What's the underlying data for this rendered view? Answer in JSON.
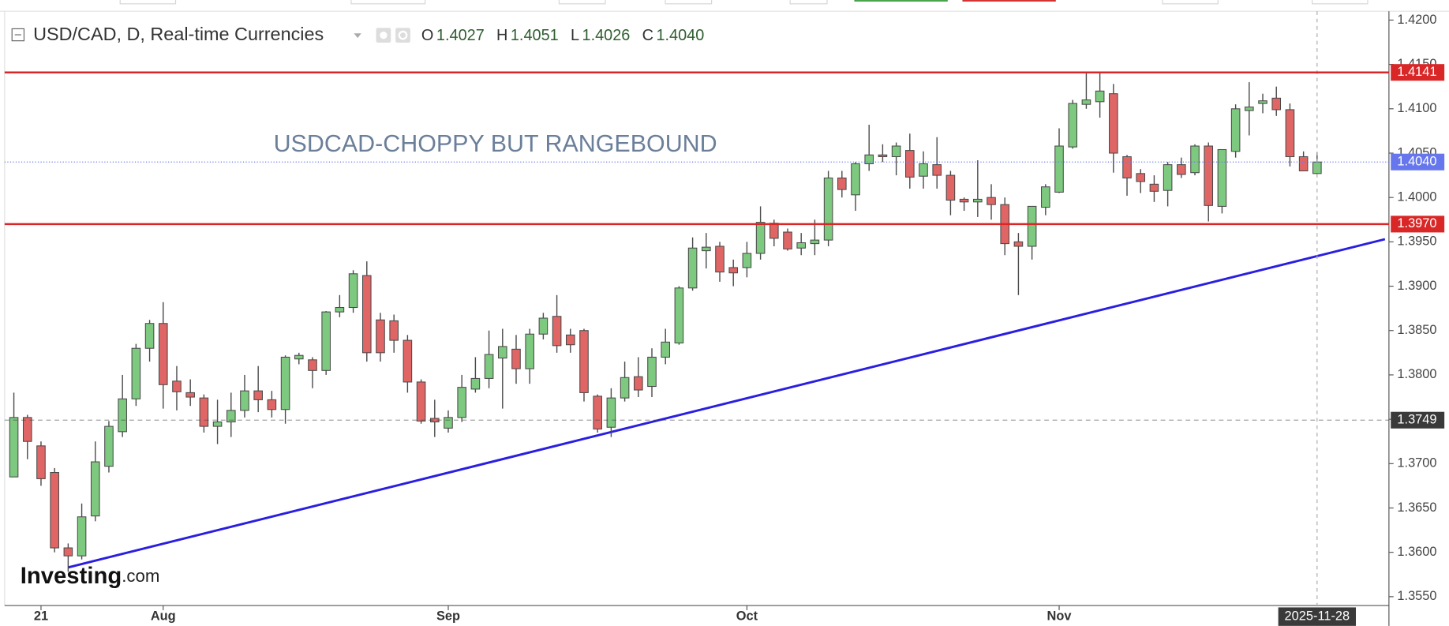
{
  "chart_data": {
    "type": "candlestick",
    "title": "USD/CAD, D, Real-time Currencies",
    "legend_values": [
      {
        "name": "O",
        "value": "1.4027"
      },
      {
        "name": "H",
        "value": "1.4051"
      },
      {
        "name": "L",
        "value": "1.4026"
      },
      {
        "name": "C",
        "value": "1.4040"
      }
    ],
    "annotation": "USDCAD-CHOPPY BUT RANGEBOUND",
    "watermark": {
      "brand": "Investing",
      "suffix": ".com"
    },
    "up_color": "#7dc97f",
    "down_color": "#e06666",
    "categories": [
      null,
      null,
      "21",
      null,
      null,
      null,
      null,
      null,
      null,
      null,
      null,
      "Aug",
      null,
      null,
      null,
      null,
      null,
      null,
      null,
      null,
      null,
      null,
      null,
      null,
      null,
      null,
      null,
      null,
      null,
      null,
      null,
      null,
      "Sep",
      null,
      null,
      null,
      null,
      null,
      null,
      null,
      null,
      null,
      null,
      null,
      null,
      null,
      null,
      null,
      null,
      null,
      null,
      null,
      null,
      null,
      "Oct",
      null,
      null,
      null,
      null,
      null,
      null,
      null,
      null,
      null,
      null,
      null,
      null,
      null,
      null,
      null,
      null,
      null,
      null,
      null,
      null,
      null,
      null,
      "Nov",
      null,
      null,
      null,
      null,
      null,
      null,
      null,
      null,
      null,
      null,
      null,
      null,
      null,
      null,
      null,
      null,
      null,
      null,
      "2025-11-28"
    ],
    "open": [
      1.3685,
      1.3752,
      1.372,
      1.369,
      1.3605,
      1.3596,
      1.3641,
      1.3697,
      1.3736,
      1.3773,
      1.383,
      1.3858,
      1.3793,
      1.378,
      1.3774,
      1.3742,
      1.3747,
      1.376,
      1.3782,
      1.3772,
      1.3761,
      1.3818,
      1.3817,
      1.3805,
      1.3871,
      1.3876,
      1.3912,
      1.3862,
      1.3861,
      1.3839,
      1.3792,
      1.3751,
      1.374,
      1.3752,
      1.3784,
      1.3796,
      1.3819,
      1.3829,
      1.3807,
      1.3846,
      1.3866,
      1.3845,
      1.385,
      1.3776,
      1.3741,
      1.3774,
      1.3798,
      1.3787,
      1.382,
      1.3836,
      1.3898,
      1.394,
      1.3945,
      1.3921,
      1.3921,
      1.3937,
      1.3971,
      1.3961,
      1.3943,
      1.3948,
      1.3952,
      1.4022,
      1.4003,
      1.4038,
      1.4048,
      1.4046,
      1.4053,
      1.4024,
      1.4037,
      1.4025,
      1.3998,
      1.3995,
      1.4,
      1.3992,
      1.395,
      1.3945,
      1.3989,
      1.4006,
      1.4057,
      1.4105,
      1.4108,
      1.4117,
      1.4046,
      1.4027,
      1.4015,
      1.4008,
      1.4037,
      1.4028,
      1.4058,
      1.399,
      1.4052,
      1.4098,
      1.4106,
      1.4112,
      1.4099,
      1.4046,
      1.4027
    ],
    "high": [
      1.378,
      1.3755,
      1.3725,
      1.3695,
      1.361,
      1.3655,
      1.3725,
      1.3748,
      1.38,
      1.3835,
      1.3862,
      1.3882,
      1.381,
      1.3795,
      1.3778,
      1.3772,
      1.378,
      1.38,
      1.381,
      1.3782,
      1.3822,
      1.3825,
      1.382,
      1.3872,
      1.389,
      1.3918,
      1.3928,
      1.387,
      1.3868,
      1.3845,
      1.3795,
      1.3772,
      1.376,
      1.38,
      1.382,
      1.385,
      1.3852,
      1.3845,
      1.3852,
      1.387,
      1.389,
      1.3852,
      1.3852,
      1.3778,
      1.3785,
      1.3815,
      1.382,
      1.383,
      1.3852,
      1.39,
      1.3955,
      1.396,
      1.395,
      1.393,
      1.395,
      1.399,
      1.3975,
      1.3965,
      1.396,
      1.3975,
      1.403,
      1.403,
      1.404,
      1.4082,
      1.406,
      1.4062,
      1.4072,
      1.4052,
      1.4068,
      1.403,
      1.4,
      1.4042,
      1.4015,
      1.4,
      1.396,
      1.399,
      1.4015,
      1.4078,
      1.411,
      1.4142,
      1.4142,
      1.4128,
      1.4048,
      1.4032,
      1.4025,
      1.404,
      1.4045,
      1.406,
      1.4062,
      1.4054,
      1.4105,
      1.413,
      1.4117,
      1.4125,
      1.4106,
      1.4052,
      1.4051
    ],
    "low": [
      1.3685,
      1.3705,
      1.3675,
      1.36,
      1.3578,
      1.3592,
      1.3635,
      1.369,
      1.373,
      1.3765,
      1.3815,
      1.3762,
      1.376,
      1.3765,
      1.3735,
      1.3722,
      1.373,
      1.3752,
      1.3758,
      1.3752,
      1.3745,
      1.3812,
      1.3785,
      1.38,
      1.3865,
      1.387,
      1.3815,
      1.3815,
      1.3825,
      1.378,
      1.3745,
      1.373,
      1.3735,
      1.3747,
      1.378,
      1.3785,
      1.3762,
      1.379,
      1.379,
      1.384,
      1.3825,
      1.3825,
      1.377,
      1.3735,
      1.373,
      1.377,
      1.3775,
      1.3775,
      1.3812,
      1.3834,
      1.3895,
      1.392,
      1.3905,
      1.39,
      1.391,
      1.393,
      1.3945,
      1.394,
      1.3935,
      1.3935,
      1.3945,
      1.4,
      1.3985,
      1.403,
      1.404,
      1.4025,
      1.401,
      1.401,
      1.401,
      1.398,
      1.3985,
      1.3978,
      1.3975,
      1.3935,
      1.389,
      1.393,
      1.398,
      1.4005,
      1.4055,
      1.41,
      1.409,
      1.4028,
      1.4002,
      1.4005,
      1.3995,
      1.399,
      1.4022,
      1.4025,
      1.3973,
      1.3982,
      1.4045,
      1.407,
      1.4095,
      1.4092,
      1.4035,
      1.403,
      1.4026
    ],
    "close": [
      1.3752,
      1.3725,
      1.3683,
      1.3605,
      1.3596,
      1.364,
      1.3702,
      1.3742,
      1.3773,
      1.383,
      1.3858,
      1.3789,
      1.3781,
      1.3775,
      1.3742,
      1.3747,
      1.376,
      1.3782,
      1.3772,
      1.3761,
      1.382,
      1.3822,
      1.3805,
      1.3871,
      1.3876,
      1.3914,
      1.3825,
      1.3825,
      1.3839,
      1.3792,
      1.3748,
      1.3747,
      1.3752,
      1.3786,
      1.3796,
      1.3823,
      1.3832,
      1.3807,
      1.3846,
      1.3864,
      1.3833,
      1.3834,
      1.378,
      1.3739,
      1.3774,
      1.3797,
      1.3783,
      1.382,
      1.3837,
      1.3898,
      1.3943,
      1.3944,
      1.3916,
      1.3915,
      1.3937,
      1.3972,
      1.3954,
      1.3942,
      1.3949,
      1.3952,
      1.4022,
      1.4009,
      1.4038,
      1.4048,
      1.4046,
      1.4058,
      1.4023,
      1.4038,
      1.4025,
      1.3997,
      1.3995,
      1.3998,
      1.3992,
      1.3948,
      1.3945,
      1.399,
      1.4012,
      1.4058,
      1.4106,
      1.411,
      1.412,
      1.405,
      1.4022,
      1.4018,
      1.4007,
      1.4037,
      1.4026,
      1.4058,
      1.3991,
      1.4054,
      1.41,
      1.4102,
      1.4109,
      1.4099,
      1.4046,
      1.403,
      1.404
    ],
    "ylim": [
      1.354,
      1.421
    ],
    "yticks": [
      {
        "value": 1.355,
        "label": "1.3550"
      },
      {
        "value": 1.36,
        "label": "1.3600"
      },
      {
        "value": 1.365,
        "label": "1.3650"
      },
      {
        "value": 1.37,
        "label": "1.3700"
      },
      {
        "value": 1.375,
        "label": "1.3750"
      },
      {
        "value": 1.38,
        "label": "1.3800"
      },
      {
        "value": 1.385,
        "label": "1.3850"
      },
      {
        "value": 1.39,
        "label": "1.3900"
      },
      {
        "value": 1.395,
        "label": "1.3950"
      },
      {
        "value": 1.4,
        "label": "1.4000"
      },
      {
        "value": 1.405,
        "label": "1.4050"
      },
      {
        "value": 1.41,
        "label": "1.4100"
      },
      {
        "value": 1.415,
        "label": "1.4150"
      },
      {
        "value": 1.42,
        "label": "1.4200"
      }
    ],
    "levels": [
      {
        "value": 1.4141,
        "label": "1.4141",
        "color": "#d92626",
        "style": "solid"
      },
      {
        "value": 1.397,
        "label": "1.3970",
        "color": "#d92626",
        "style": "solid"
      },
      {
        "value": 1.404,
        "label": "1.4040",
        "color": "#6677ee",
        "style": "dotted"
      },
      {
        "value": 1.3749,
        "label": "1.3749",
        "color": "#3a3a3a",
        "style": "dashed"
      }
    ],
    "trendline": {
      "color": "#2a1ee0",
      "points": [
        [
          4,
          1.3583
        ],
        [
          101,
          1.3953
        ]
      ]
    }
  }
}
